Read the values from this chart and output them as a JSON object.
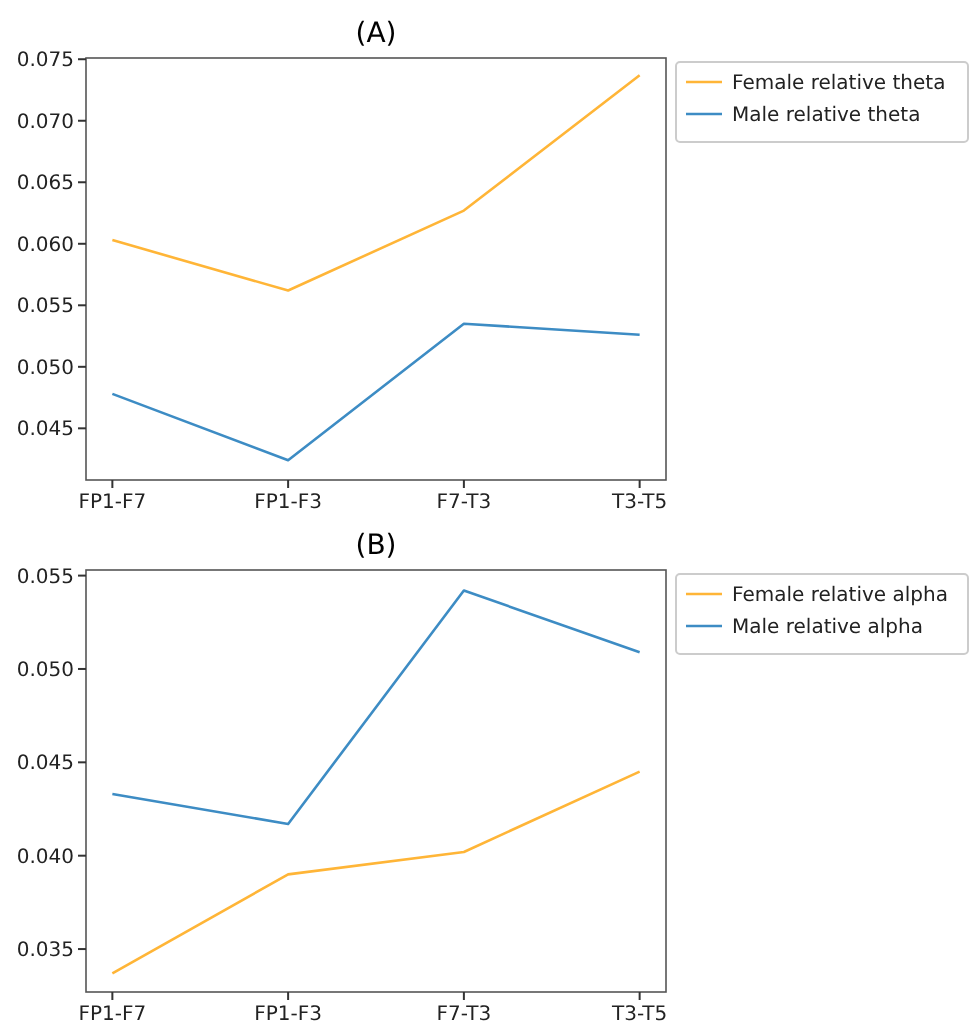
{
  "chart_data": [
    {
      "type": "line",
      "title": "(A)",
      "categories": [
        "FP1-F7",
        "FP1-F3",
        "F7-T3",
        "T3-T5"
      ],
      "series": [
        {
          "name": "Female relative theta",
          "color": "#ffb537",
          "values": [
            0.0603,
            0.0562,
            0.0627,
            0.0737
          ]
        },
        {
          "name": "Male relative theta",
          "color": "#3d8cc4",
          "values": [
            0.0478,
            0.0424,
            0.0535,
            0.0526
          ]
        }
      ],
      "ylim": [
        0.0408,
        0.0751
      ],
      "yticks": [
        {
          "value": 0.045,
          "label": "0.045"
        },
        {
          "value": 0.05,
          "label": "0.050"
        },
        {
          "value": 0.055,
          "label": "0.055"
        },
        {
          "value": 0.06,
          "label": "0.060"
        },
        {
          "value": 0.065,
          "label": "0.065"
        },
        {
          "value": 0.07,
          "label": "0.070"
        },
        {
          "value": 0.075,
          "label": "0.075"
        }
      ],
      "legend": "right"
    },
    {
      "type": "line",
      "title": "(B)",
      "categories": [
        "FP1-F7",
        "FP1-F3",
        "F7-T3",
        "T3-T5"
      ],
      "series": [
        {
          "name": "Female relative alpha",
          "color": "#ffb537",
          "values": [
            0.0337,
            0.039,
            0.0402,
            0.0445
          ]
        },
        {
          "name": "Male relative alpha",
          "color": "#3d8cc4",
          "values": [
            0.0433,
            0.0417,
            0.0542,
            0.0509
          ]
        }
      ],
      "ylim": [
        0.0327,
        0.0553
      ],
      "yticks": [
        {
          "value": 0.035,
          "label": "0.035"
        },
        {
          "value": 0.04,
          "label": "0.040"
        },
        {
          "value": 0.045,
          "label": "0.045"
        },
        {
          "value": 0.05,
          "label": "0.050"
        },
        {
          "value": 0.055,
          "label": "0.055"
        }
      ],
      "legend": "right"
    }
  ]
}
